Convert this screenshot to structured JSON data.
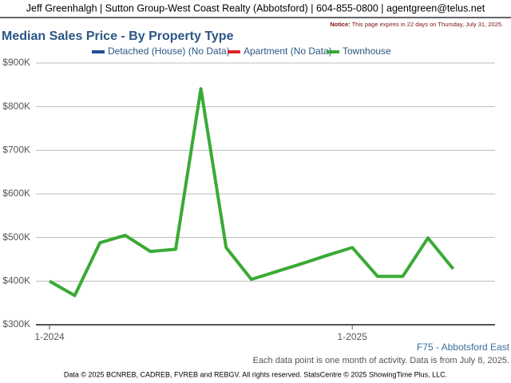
{
  "header": {
    "title": "Jeff Greenhalgh | Sutton Group-West Coast Realty (Abbotsford) | 604-855-0800 | agentgreen@telus.net",
    "notice_label": "Notice:",
    "notice_text": "This page expires in 22 days on Thursday, July 31, 2025."
  },
  "chart_data": {
    "type": "line",
    "title": "Median Sales Price - By Property Type",
    "categories": [
      "1-2024",
      null,
      null,
      null,
      null,
      null,
      null,
      null,
      null,
      null,
      null,
      null,
      "1-2025",
      null,
      null,
      null,
      null
    ],
    "series": [
      {
        "name": "Detached (House) (No Data)",
        "color": "#1f4e96",
        "values": [
          null,
          null,
          null,
          null,
          null,
          null,
          null,
          null,
          null,
          null,
          null,
          null,
          null,
          null,
          null,
          null,
          null
        ]
      },
      {
        "name": "Apartment (No Data)",
        "color": "#d9262a",
        "values": [
          null,
          null,
          null,
          null,
          null,
          null,
          null,
          null,
          null,
          null,
          null,
          null,
          null,
          null,
          null,
          null,
          null
        ]
      },
      {
        "name": "Townhouse",
        "color": "#3aaa35",
        "values": [
          400000,
          367000,
          488000,
          505000,
          468000,
          473000,
          841000,
          477000,
          404000,
          422000,
          440000,
          459000,
          477000,
          411000,
          411000,
          499000,
          428000
        ]
      }
    ],
    "ylim": [
      300000,
      900000
    ],
    "yticks": [
      {
        "value": 300000,
        "label": "$300K"
      },
      {
        "value": 400000,
        "label": "$400K"
      },
      {
        "value": 500000,
        "label": "$500K"
      },
      {
        "value": 600000,
        "label": "$600K"
      },
      {
        "value": 700000,
        "label": "$700K"
      },
      {
        "value": 800000,
        "label": "$800K"
      },
      {
        "value": 900000,
        "label": "$900K"
      }
    ],
    "grid": true,
    "area_label": "F75 - Abbotsford East",
    "note": "Each data point is one month of activity. Data is from July 8, 2025."
  },
  "footer": "Data © 2025 BCNREB, CADREB, FVREB and REBGV. All rights reserved. StatsCentre © 2025 ShowingTime Plus, LLC."
}
